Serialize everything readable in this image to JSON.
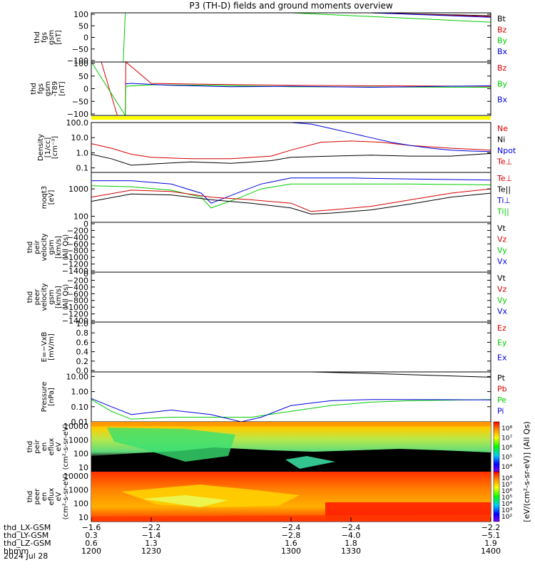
{
  "title": "P3 (TH-D) fields and ground moments overview",
  "colors": {
    "black": "#000000",
    "red": "#d40000",
    "green": "#00cc00",
    "blue": "#0000dd",
    "yellow": "#ffff00"
  },
  "chart_data": [
    {
      "type": "line",
      "panel": "fgs_gsm",
      "ylabel_lines": [
        "thd",
        "fgs",
        "gsm",
        "[nT]"
      ],
      "ylim": [
        -100,
        100
      ],
      "yticks": [
        "100",
        "50",
        "0",
        "−50",
        "−100"
      ],
      "legend": [
        {
          "label": "Bt",
          "color": "#000000"
        },
        {
          "label": "Bz",
          "color": "#d40000"
        },
        {
          "label": "By",
          "color": "#00cc00"
        },
        {
          "label": "Bx",
          "color": "#0000dd"
        }
      ],
      "series": [
        {
          "name": "Bt",
          "x": [
            1340,
            1400
          ],
          "y": [
            100,
            88
          ]
        },
        {
          "name": "Bz",
          "x": [
            1340,
            1400
          ],
          "y": [
            100,
            85
          ]
        },
        {
          "name": "By",
          "x": [
            1216,
            1217,
            1220,
            1300,
            1400
          ],
          "y": [
            -100,
            100,
            100,
            100,
            62
          ]
        },
        {
          "name": "Bx",
          "x": [
            1340,
            1400
          ],
          "y": [
            100,
            82
          ]
        }
      ]
    },
    {
      "type": "line",
      "panel": "fgs_gsm_dipole",
      "ylabel_lines": [
        "thd",
        "fgs",
        "gsm",
        "-T89",
        "[nT]"
      ],
      "ylim": [
        -120,
        100
      ],
      "yticks": [
        "100",
        "50",
        "0",
        "−50",
        "−100"
      ],
      "legend": [
        {
          "label": "Bz",
          "color": "#d40000"
        },
        {
          "label": "By",
          "color": "#00cc00"
        },
        {
          "label": "Bx",
          "color": "#0000dd"
        }
      ],
      "series": [
        {
          "name": "Bz",
          "x": [
            1205,
            1213,
            1217,
            1217.3,
            1230,
            1260,
            1300,
            1340,
            1400
          ],
          "y": [
            100,
            -120,
            -120,
            100,
            12,
            8,
            4,
            2,
            0
          ]
        },
        {
          "name": "By",
          "x": [
            1200,
            1217,
            1217.3,
            1230,
            1260,
            1300,
            1400
          ],
          "y": [
            100,
            -120,
            0,
            6,
            4,
            -2,
            -4
          ]
        },
        {
          "name": "Bx",
          "x": [
            1217,
            1220,
            1240,
            1270,
            1300,
            1340,
            1400
          ],
          "y": [
            10,
            12,
            4,
            -2,
            0,
            -4,
            2
          ]
        }
      ]
    },
    {
      "type": "line",
      "panel": "density",
      "ylabel_lines": [
        "Density",
        "[1/cc]",
        "[cm⁻³]"
      ],
      "scale": "log",
      "ylim": [
        0.05,
        100
      ],
      "yticks": [
        "100.0",
        "10.0",
        "1.0",
        "0.1"
      ],
      "legend": [
        {
          "label": "Ne",
          "color": "#d40000"
        },
        {
          "label": "Ni",
          "color": "#000000"
        },
        {
          "label": "Npot",
          "color": "#0000dd"
        },
        {
          "label": "Te⊥",
          "color": "#d40000"
        }
      ],
      "series": [
        {
          "name": "Ne",
          "x": [
            1200,
            1210,
            1220,
            1230,
            1250,
            1270,
            1290,
            1300,
            1315,
            1330,
            1345,
            1360,
            1380,
            1400
          ],
          "y": [
            4,
            2,
            0.8,
            0.5,
            0.4,
            0.4,
            0.6,
            1.5,
            5,
            6,
            5,
            3,
            2,
            1.5
          ]
        },
        {
          "name": "Ni",
          "x": [
            1200,
            1210,
            1220,
            1230,
            1250,
            1270,
            1290,
            1300,
            1320,
            1340,
            1360,
            1380,
            1400
          ],
          "y": [
            0.8,
            0.4,
            0.15,
            0.18,
            0.25,
            0.2,
            0.3,
            0.5,
            0.6,
            0.7,
            0.6,
            0.6,
            0.9
          ]
        },
        {
          "name": "Npot",
          "x": [
            1300,
            1310,
            1320,
            1330,
            1340,
            1350,
            1360,
            1370,
            1380,
            1390,
            1400
          ],
          "y": [
            100,
            80,
            40,
            20,
            10,
            5,
            3,
            2,
            1.5,
            1.3,
            1.2
          ]
        }
      ]
    },
    {
      "type": "line",
      "panel": "temperature",
      "ylabel_lines": [
        "moqt3",
        "[eV]"
      ],
      "scale": "log",
      "ylim": [
        60,
        4000
      ],
      "yticks": [
        "1000",
        "100"
      ],
      "legend": [
        {
          "label": "Te⊥",
          "color": "#d40000"
        },
        {
          "label": "Te||",
          "color": "#000000"
        },
        {
          "label": "Ti⊥",
          "color": "#0000dd"
        },
        {
          "label": "Ti||",
          "color": "#00cc00"
        }
      ],
      "series": [
        {
          "name": "Ti⊥",
          "x": [
            1200,
            1220,
            1240,
            1255,
            1260,
            1275,
            1285,
            1300,
            1330,
            1360,
            1400
          ],
          "y": [
            2000,
            2000,
            1500,
            700,
            300,
            800,
            1500,
            2500,
            2500,
            2300,
            2100
          ]
        },
        {
          "name": "Ti||",
          "x": [
            1200,
            1220,
            1240,
            1255,
            1260,
            1275,
            1285,
            1300,
            1330,
            1360,
            1400
          ],
          "y": [
            1300,
            1200,
            900,
            500,
            200,
            500,
            1000,
            1500,
            1500,
            1500,
            1400
          ]
        },
        {
          "name": "Te⊥",
          "x": [
            1200,
            1220,
            1240,
            1260,
            1280,
            1300,
            1310,
            1320,
            1340,
            1360,
            1380,
            1400
          ],
          "y": [
            500,
            900,
            800,
            500,
            400,
            300,
            150,
            170,
            230,
            400,
            700,
            1000
          ]
        },
        {
          "name": "Te||",
          "x": [
            1200,
            1220,
            1240,
            1260,
            1280,
            1300,
            1310,
            1320,
            1340,
            1360,
            1380,
            1400
          ],
          "y": [
            350,
            650,
            600,
            400,
            300,
            200,
            120,
            130,
            170,
            280,
            500,
            700
          ]
        }
      ]
    },
    {
      "type": "line",
      "panel": "ion_velocity",
      "ylabel_lines": [
        "thd",
        "peir",
        "velocity",
        "gsm",
        "[km/s]",
        "(All Qs)"
      ],
      "ylim": [
        -1400,
        0
      ],
      "yticks": [
        "0",
        "−200",
        "−400",
        "−600",
        "−800",
        "−1000",
        "−1200",
        "−1400"
      ],
      "legend": [
        {
          "label": "Vt",
          "color": "#000000"
        },
        {
          "label": "Vz",
          "color": "#d40000"
        },
        {
          "label": "Vy",
          "color": "#00cc00"
        },
        {
          "label": "Vx",
          "color": "#0000dd"
        }
      ]
    },
    {
      "type": "line",
      "panel": "electron_velocity",
      "ylabel_lines": [
        "thd",
        "peer",
        "velocity",
        "gsm",
        "[km/s]",
        "(All Qs)"
      ],
      "ylim": [
        -1400,
        0
      ],
      "yticks": [
        "0",
        "−200",
        "−400",
        "−600",
        "−800",
        "−1000",
        "−1200",
        "−1400"
      ],
      "legend": [
        {
          "label": "Vt",
          "color": "#000000"
        },
        {
          "label": "Vz",
          "color": "#d40000"
        },
        {
          "label": "Vy",
          "color": "#00cc00"
        },
        {
          "label": "Vx",
          "color": "#0000dd"
        }
      ]
    },
    {
      "type": "line",
      "panel": "efield",
      "ylabel_lines": [
        "E=−VxB",
        "[mV/m]"
      ],
      "ylim": [
        0,
        1
      ],
      "yticks": [
        "1.0",
        "0.8",
        "0.6",
        "0.4",
        "0.2",
        "0.0"
      ],
      "legend": [
        {
          "label": "Ez",
          "color": "#d40000"
        },
        {
          "label": "Ey",
          "color": "#00cc00"
        },
        {
          "label": "Ex",
          "color": "#0000dd"
        }
      ]
    },
    {
      "type": "line",
      "panel": "pressure",
      "ylabel_lines": [
        "Pressure",
        "[nPa]"
      ],
      "scale": "log",
      "ylim": [
        0.01,
        20
      ],
      "yticks": [
        "10.00",
        "1.00",
        "0.10",
        "0.01"
      ],
      "legend": [
        {
          "label": "Pt",
          "color": "#000000"
        },
        {
          "label": "Pb",
          "color": "#d40000"
        },
        {
          "label": "Pe",
          "color": "#00cc00"
        },
        {
          "label": "Pi",
          "color": "#0000dd"
        }
      ],
      "series": [
        {
          "name": "Pt",
          "x": [
            1310,
            1340,
            1370,
            1400
          ],
          "y": [
            20,
            16,
            12,
            9
          ]
        },
        {
          "name": "Pe",
          "x": [
            1200,
            1210,
            1220,
            1240,
            1260,
            1280,
            1300,
            1320,
            1340,
            1360,
            1400
          ],
          "y": [
            0.3,
            0.05,
            0.015,
            0.02,
            0.02,
            0.02,
            0.05,
            0.12,
            0.2,
            0.25,
            0.3
          ]
        },
        {
          "name": "Pi",
          "x": [
            1200,
            1210,
            1220,
            1240,
            1260,
            1275,
            1285,
            1300,
            1320,
            1340,
            1360,
            1400
          ],
          "y": [
            0.35,
            0.1,
            0.03,
            0.06,
            0.03,
            0.01,
            0.02,
            0.12,
            0.25,
            0.3,
            0.3,
            0.28
          ]
        }
      ]
    },
    {
      "type": "heatmap",
      "panel": "ion_spectrogram",
      "ylabel_lines": [
        "thd",
        "peir",
        "en",
        "eflux",
        "eV",
        "(cm²-s-sr-eV)"
      ],
      "scale": "log",
      "ylim": [
        5,
        20000
      ],
      "yticks": [
        "10000",
        "1000",
        "100",
        "10"
      ],
      "colorbar_ticks": [
        "10⁸",
        "10⁷",
        "10⁶",
        "10⁵",
        "10⁴"
      ]
    },
    {
      "type": "heatmap",
      "panel": "electron_spectrogram",
      "ylabel_lines": [
        "thd",
        "peer",
        "en",
        "eflux",
        "eV",
        "(cm²-s-sr-eV)"
      ],
      "scale": "log",
      "ylim": [
        5,
        20000
      ],
      "yticks": [
        "10000",
        "1000",
        "100",
        "10"
      ],
      "colorbar_ticks": [
        "10⁸",
        "10⁷",
        "10⁶",
        "10⁵",
        "10⁴",
        "10³",
        "10²"
      ]
    }
  ],
  "colorbar_label": "[eV/(cm²-s-sr-eV)]  (All Qs)",
  "x_axis": {
    "xlim": [
      1200,
      1400
    ],
    "rows": [
      {
        "label": "thd_LX-GSM",
        "values": [
          "−1.6",
          "−2.2",
          "−2.4",
          "−2.4",
          "−2.2"
        ]
      },
      {
        "label": "thd_LY-GSM",
        "values": [
          "0.3",
          "−1.4",
          "−2.8",
          "−4.0",
          "−5.1"
        ]
      },
      {
        "label": "thd_LZ-GSM",
        "values": [
          "0.6",
          "1.3",
          "1.6",
          "1.8",
          "1.9"
        ]
      },
      {
        "label": "hhmm",
        "values": [
          "1200",
          "1230",
          "1300",
          "1330",
          "1400"
        ]
      }
    ],
    "tick_positions": [
      1200,
      1230,
      1300,
      1330,
      1400
    ],
    "date": "2024 Jul 28"
  }
}
